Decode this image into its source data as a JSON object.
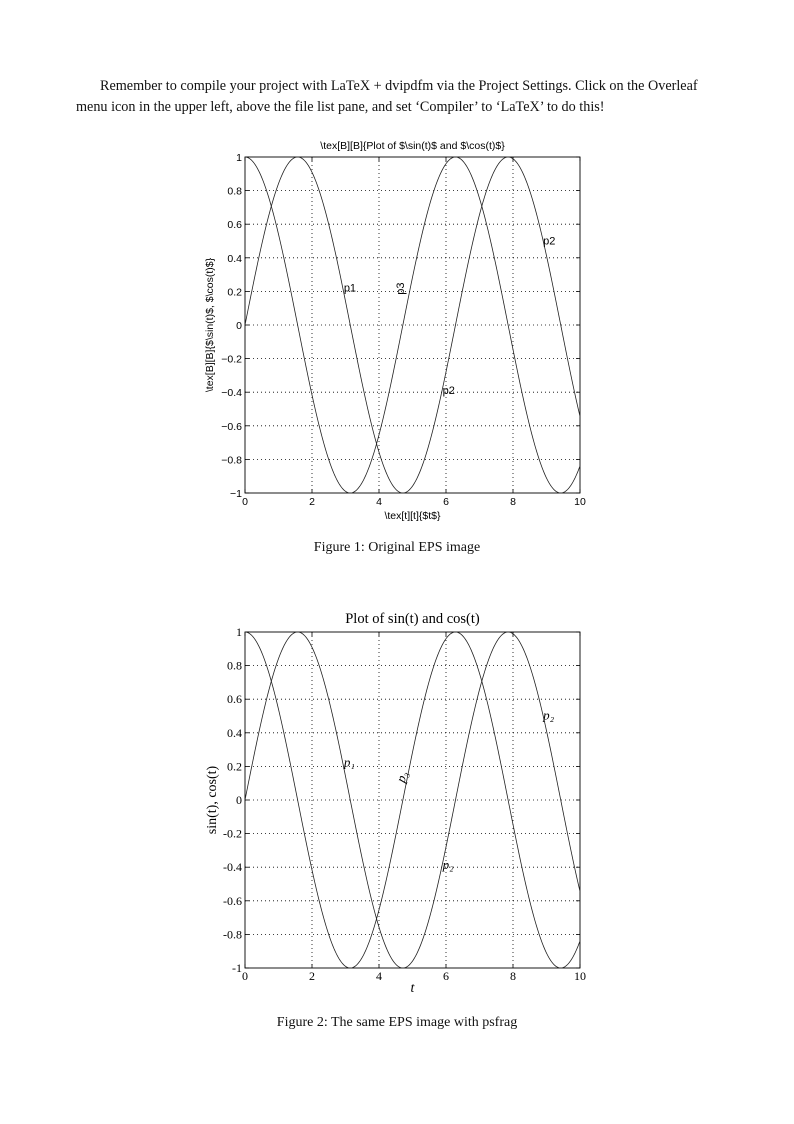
{
  "paragraph": "Remember to compile your project with LaTeX + dvipdfm via the Project Settings. Click on the Overleaf menu icon in the upper left, above the file list pane, and set ‘Compiler’ to ‘LaTeX’ to do this!",
  "figures": [
    {
      "caption": "Figure 1: Original EPS image"
    },
    {
      "caption": "Figure 2: The same EPS image with psfrag"
    }
  ],
  "chart_data": [
    {
      "type": "line",
      "title": "\\tex[B][B]{Plot of $\\sin(t)$ and $\\cos(t)$}",
      "xlabel": "\\tex[t][t]{$t$}",
      "ylabel": "\\tex[B][B]{$\\sin(t)$, $\\cos(t)$}",
      "xlim": [
        0,
        10
      ],
      "ylim": [
        -1,
        1
      ],
      "xticks": [
        "0",
        "2",
        "4",
        "6",
        "8",
        "10"
      ],
      "yticks": [
        "−1",
        "−0.8",
        "−0.6",
        "−0.4",
        "−0.2",
        "0",
        "0.2",
        "0.4",
        "0.6",
        "0.8",
        "1"
      ],
      "grid": true,
      "series": [
        {
          "function": "sin"
        },
        {
          "function": "cos"
        }
      ],
      "annotations": [
        {
          "text": "p1",
          "x": 2.95,
          "y": 0.2,
          "rotate": 0
        },
        {
          "text": "p3",
          "x": 4.75,
          "y": 0.18,
          "rotate": -90
        },
        {
          "text": "p2",
          "x": 5.9,
          "y": -0.41,
          "rotate": 0
        },
        {
          "text": "p2",
          "x": 8.9,
          "y": 0.48,
          "rotate": 0
        }
      ]
    },
    {
      "type": "line",
      "title": "Plot of sin(t) and cos(t)",
      "xlabel": "t",
      "ylabel": "sin(t), cos(t)",
      "xlim": [
        0,
        10
      ],
      "ylim": [
        -1,
        1
      ],
      "xticks": [
        "0",
        "2",
        "4",
        "6",
        "8",
        "10"
      ],
      "yticks": [
        "-1",
        "-0.8",
        "-0.6",
        "-0.4",
        "-0.2",
        "0",
        "0.2",
        "0.4",
        "0.6",
        "0.8",
        "1"
      ],
      "grid": true,
      "series": [
        {
          "function": "sin"
        },
        {
          "function": "cos"
        }
      ],
      "annotations": [
        {
          "text": "p₁",
          "x": 2.95,
          "y": 0.2,
          "rotate": 0
        },
        {
          "text": "p₃",
          "x": 4.75,
          "y": 0.1,
          "rotate": -70
        },
        {
          "text": "p₂",
          "x": 5.9,
          "y": -0.41,
          "rotate": 0
        },
        {
          "text": "p₂",
          "x": 8.9,
          "y": 0.48,
          "rotate": 0
        }
      ]
    }
  ]
}
